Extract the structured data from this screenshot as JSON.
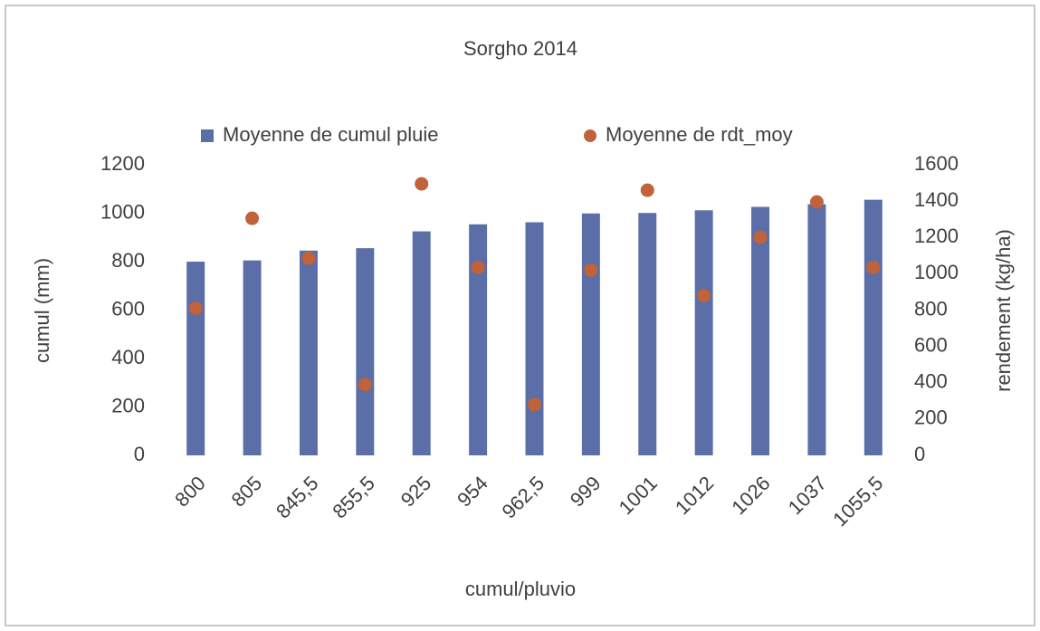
{
  "chart_data": {
    "type": "combo",
    "title": "Sorgho 2014",
    "x_label": "cumul/pluvio",
    "y_label": "cumul (mm)",
    "y2_label": "rendement (kg/ha)",
    "categories": [
      "800",
      "805",
      "845,5",
      "855,5",
      "925",
      "954",
      "962,5",
      "999",
      "1001",
      "1012",
      "1026",
      "1037",
      "1055,5"
    ],
    "series": [
      {
        "name": "Moyenne de cumul pluie",
        "type": "bar",
        "color": "#5b6ea8",
        "values": [
          800,
          805,
          845.5,
          855.5,
          925,
          954,
          962.5,
          999,
          1001,
          1012,
          1026,
          1037,
          1055.5
        ]
      },
      {
        "name": "Moyenne de rdt_moy",
        "type": "scatter",
        "axis": "y2",
        "color": "#c0623a",
        "values": [
          810,
          1305,
          1085,
          390,
          1495,
          1035,
          280,
          1020,
          1460,
          880,
          1200,
          1395,
          1035
        ]
      }
    ],
    "ylim": [
      0,
      1200
    ],
    "yticks": [
      0,
      200,
      400,
      600,
      800,
      1000,
      1200
    ],
    "y2lim": [
      0,
      1600
    ],
    "y2ticks": [
      0,
      200,
      400,
      600,
      800,
      1000,
      1200,
      1400,
      1600
    ],
    "legend": "top",
    "grid": false
  }
}
